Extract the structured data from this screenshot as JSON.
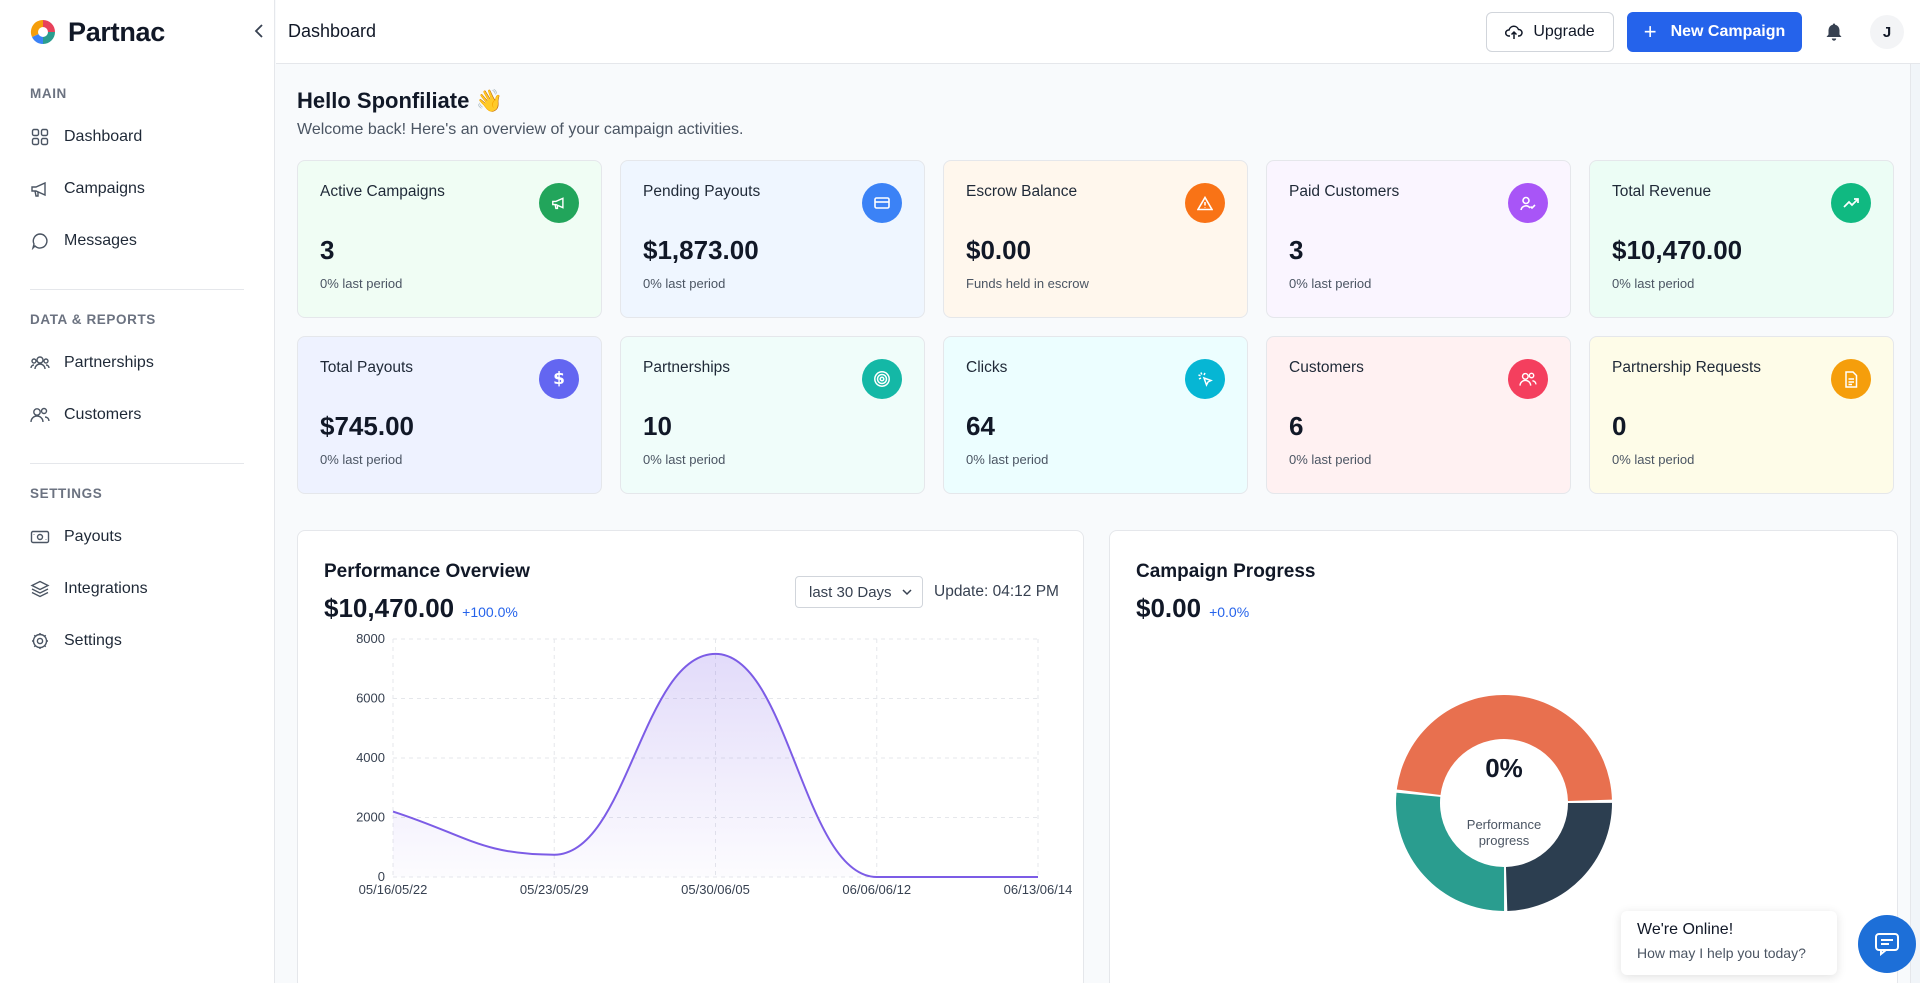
{
  "brand": {
    "name": "Partnac"
  },
  "header": {
    "title": "Dashboard",
    "upgrade_label": "Upgrade",
    "new_campaign_label": "New Campaign",
    "avatar_initial": "J"
  },
  "sidebar": {
    "sections": [
      {
        "title": "MAIN",
        "items": [
          {
            "label": "Dashboard",
            "icon": "grid-icon"
          },
          {
            "label": "Campaigns",
            "icon": "megaphone-icon"
          },
          {
            "label": "Messages",
            "icon": "chat-icon"
          }
        ]
      },
      {
        "title": "DATA & REPORTS",
        "items": [
          {
            "label": "Partnerships",
            "icon": "people-group-icon"
          },
          {
            "label": "Customers",
            "icon": "users-icon"
          }
        ]
      },
      {
        "title": "SETTINGS",
        "items": [
          {
            "label": "Payouts",
            "icon": "cash-icon"
          },
          {
            "label": "Integrations",
            "icon": "layers-icon"
          },
          {
            "label": "Settings",
            "icon": "gear-icon"
          }
        ]
      }
    ]
  },
  "greeting": {
    "title": "Hello Sponfiliate 👋",
    "subtitle": "Welcome back! Here's an overview of your campaign activities."
  },
  "cards": [
    {
      "title": "Active Campaigns",
      "value": "3",
      "sub": "0% last period",
      "bg": "#f0fdf4",
      "icon_bg": "#22a55b",
      "icon": "megaphone-icon"
    },
    {
      "title": "Pending Payouts",
      "value": "$1,873.00",
      "sub": "0% last period",
      "bg": "#eff6ff",
      "icon_bg": "#3b82f6",
      "icon": "credit-card-icon"
    },
    {
      "title": "Escrow Balance",
      "value": "$0.00",
      "sub": "Funds held in escrow",
      "bg": "#fff7ed",
      "icon_bg": "#f97316",
      "icon": "warning-icon"
    },
    {
      "title": "Paid Customers",
      "value": "3",
      "sub": "0% last period",
      "bg": "#faf5ff",
      "icon_bg": "#a855f7",
      "icon": "user-check-icon"
    },
    {
      "title": "Total Revenue",
      "value": "$10,470.00",
      "sub": "0% last period",
      "bg": "#ecfdf5",
      "icon_bg": "#10b981",
      "icon": "trend-up-icon"
    },
    {
      "title": "Total Payouts",
      "value": "$745.00",
      "sub": "0% last period",
      "bg": "#eef2ff",
      "icon_bg": "#6366f1",
      "icon": "dollar-icon"
    },
    {
      "title": "Partnerships",
      "value": "10",
      "sub": "0% last period",
      "bg": "#f0fdfa",
      "icon_bg": "#14b8a6",
      "icon": "target-icon"
    },
    {
      "title": "Clicks",
      "value": "64",
      "sub": "0% last period",
      "bg": "#ecfeff",
      "icon_bg": "#06b6d4",
      "icon": "click-icon"
    },
    {
      "title": "Customers",
      "value": "6",
      "sub": "0% last period",
      "bg": "#fff1f2",
      "icon_bg": "#f43f5e",
      "icon": "users-icon"
    },
    {
      "title": "Partnership Requests",
      "value": "0",
      "sub": "0% last period",
      "bg": "#fefce8",
      "icon_bg": "#f59e0b",
      "icon": "document-icon"
    }
  ],
  "performance": {
    "title": "Performance Overview",
    "value": "$10,470.00",
    "change": "+100.0%",
    "range_selected": "last 30 Days",
    "update_text": "Update: 04:12 PM"
  },
  "campaign_progress": {
    "title": "Campaign Progress",
    "value": "$0.00",
    "change": "+0.0%",
    "center_value": "0%",
    "center_label": "Performance progress"
  },
  "chat": {
    "line1": "We're Online!",
    "line2": "How may I help you today?"
  },
  "chart_data": [
    {
      "type": "area",
      "x": [
        "05/16/05/22",
        "05/23/05/29",
        "05/30/06/05",
        "06/06/06/12",
        "06/13/06/14"
      ],
      "values": [
        2200,
        750,
        7500,
        0,
        0
      ],
      "ylim": [
        0,
        8000
      ],
      "yticks": [
        0,
        2000,
        4000,
        6000,
        8000
      ],
      "grid": true,
      "color": "#7c5ce6"
    },
    {
      "type": "pie",
      "values": [
        48,
        27,
        25
      ],
      "colors": [
        "#e8704f",
        "#2a9d8f",
        "#2c3e50"
      ]
    }
  ]
}
